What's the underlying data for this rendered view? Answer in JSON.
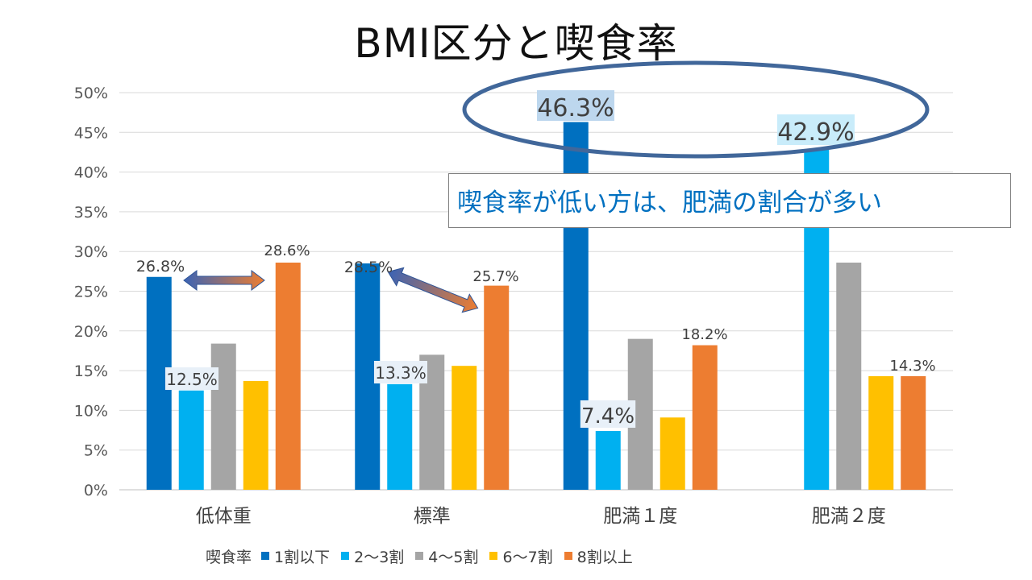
{
  "title": "BMI区分と喫食率",
  "callout": "喫食率が低い方は、肥満の割合が多い",
  "chart_data": {
    "type": "bar",
    "categories": [
      "低体重",
      "標準",
      "肥満１度",
      "肥満２度"
    ],
    "ylim": [
      0,
      50
    ],
    "yticks": [
      "0%",
      "5%",
      "10%",
      "15%",
      "20%",
      "25%",
      "30%",
      "35%",
      "40%",
      "45%",
      "50%"
    ],
    "grid": true,
    "legend_position": "bottom",
    "legend_title": "喫食率",
    "series": [
      {
        "name": "1割以下",
        "color": "#0070c0",
        "values": [
          26.8,
          28.5,
          46.3,
          0
        ],
        "labels": [
          "26.8%",
          "28.5%",
          "46.3%",
          ""
        ]
      },
      {
        "name": "2～3割",
        "color": "#00b0f0",
        "values": [
          12.5,
          13.3,
          7.4,
          42.9
        ],
        "labels": [
          "12.5%",
          "13.3%",
          "7.4%",
          "42.9%"
        ]
      },
      {
        "name": "4～5割",
        "color": "#a5a5a5",
        "values": [
          18.4,
          17.0,
          19.0,
          28.6
        ],
        "labels": [
          "",
          "",
          "",
          ""
        ]
      },
      {
        "name": "6～7割",
        "color": "#ffc000",
        "values": [
          13.7,
          15.6,
          9.1,
          14.3
        ],
        "labels": [
          "",
          "",
          "",
          ""
        ]
      },
      {
        "name": "8割以上",
        "color": "#ed7d31",
        "values": [
          28.6,
          25.7,
          18.2,
          14.3
        ],
        "labels": [
          "28.6%",
          "25.7%",
          "18.2%",
          "14.3%"
        ]
      }
    ]
  }
}
